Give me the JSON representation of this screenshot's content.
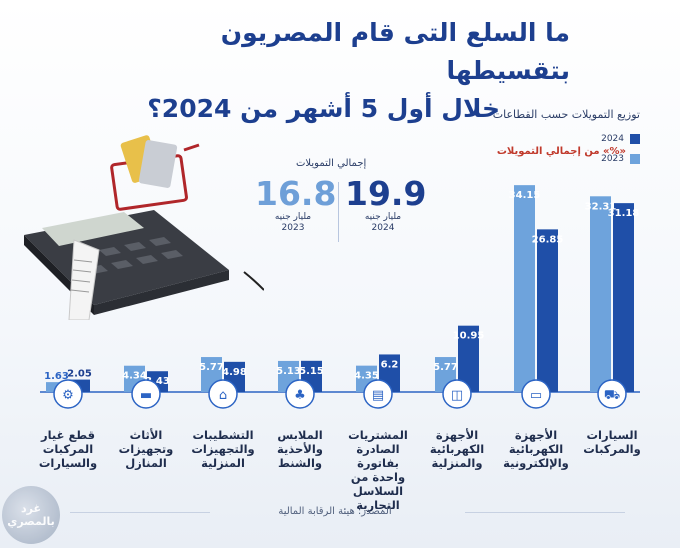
{
  "header": {
    "title_line1": "ما السلع التى قام المصريون بتقسيطها",
    "title_line2": "خلال أول 5 أشهر من 2024؟"
  },
  "sector_caption": "توزيع التمويلات حسب القطاعات",
  "legend": {
    "y2024": "2024",
    "y2023": "2023",
    "pct_note": "«%» من إجمالي التمويلات"
  },
  "totals": {
    "label": "إجمالي التمويلات",
    "v2024": "19.9",
    "v2023": "16.8",
    "unit": "مليار جنيه",
    "y2024": "2024",
    "y2023": "2023"
  },
  "colors": {
    "c2024": "#1f4fa8",
    "c2023": "#6ea3dc",
    "title": "#1d3f8f",
    "accent": "#c0392b"
  },
  "chart_data": {
    "type": "bar",
    "categories": [
      "السيارات والمركبات",
      "الأجهزة الكهربائية والإلكترونية",
      "الأجهزة الكهربائية والمنزلية",
      "المشتريات الصادرة بفاتورة واحدة من السلاسل التجارية",
      "الملابس والأحذية والشنط",
      "التشطيبات والتجهيزات المنزلية",
      "الأثاث وتجهيزات المنازل",
      "قطع غيار المركبات والسيارات"
    ],
    "series": [
      {
        "name": "2024",
        "values": [
          31.18,
          26.85,
          10.95,
          6.2,
          5.15,
          4.98,
          3.43,
          2.05
        ]
      },
      {
        "name": "2023",
        "values": [
          32.31,
          34.15,
          5.77,
          4.35,
          5.13,
          5.77,
          4.34,
          1.63
        ]
      }
    ],
    "value_labels_2024": [
      "31.18",
      "26.85",
      "10.95",
      "6.2",
      "5.15",
      "4.98",
      "3.43",
      "2.05"
    ],
    "value_labels_2023": [
      "32.31",
      "34.15",
      "5.77",
      "4.35",
      "5.13",
      "5.77",
      "4.34",
      "1.63"
    ],
    "ylim": [
      0,
      35
    ]
  },
  "icons": [
    "car-icon",
    "laptop-icon",
    "washer-icon",
    "receipt-icon",
    "shirt-icon",
    "house-icon",
    "sofa-icon",
    "gear-icon"
  ],
  "source": "المصدر: هيئة الرقابة المالية",
  "watermark": {
    "line1": "غرد",
    "line2": "بالمصري"
  }
}
